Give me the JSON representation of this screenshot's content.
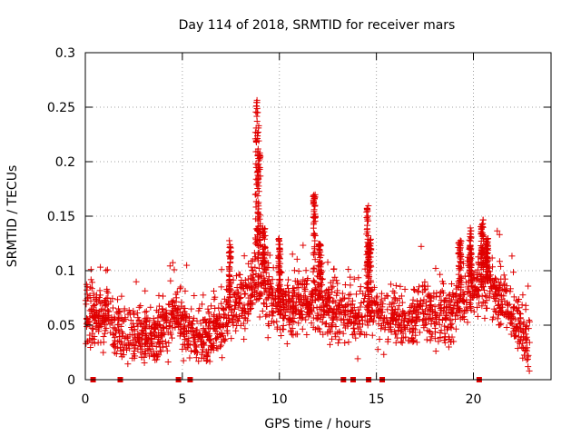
{
  "chart_data": {
    "type": "scatter",
    "title": "Day 114 of 2018, SRMTID for receiver mars",
    "xlabel": "GPS time / hours",
    "ylabel": "SRMTID / TECUs",
    "xlim": [
      0,
      24
    ],
    "ylim": [
      0,
      0.3
    ],
    "xticks": [
      0,
      5,
      10,
      15,
      20
    ],
    "yticks": [
      0,
      0.05,
      0.1,
      0.15,
      0.2,
      0.25,
      0.3
    ],
    "xtick_labels": [
      "0",
      "5",
      "10",
      "15",
      "20"
    ],
    "ytick_labels": [
      "0",
      "0.05",
      "0.1",
      "0.15",
      "0.2",
      "0.25",
      "0.3"
    ],
    "grid": true,
    "marker": "+",
    "color": "#e00000",
    "baseline_markers_x": [
      0.4,
      1.8,
      4.8,
      5.4,
      13.3,
      13.8,
      14.6,
      15.3,
      20.3
    ],
    "trend": [
      [
        0.0,
        0.06
      ],
      [
        0.5,
        0.055
      ],
      [
        1.2,
        0.06
      ],
      [
        1.7,
        0.045
      ],
      [
        2.5,
        0.038
      ],
      [
        3.5,
        0.042
      ],
      [
        4.2,
        0.05
      ],
      [
        4.8,
        0.06
      ],
      [
        5.2,
        0.045
      ],
      [
        6.0,
        0.04
      ],
      [
        6.8,
        0.048
      ],
      [
        7.5,
        0.06
      ],
      [
        8.2,
        0.075
      ],
      [
        8.7,
        0.09
      ],
      [
        9.2,
        0.085
      ],
      [
        9.8,
        0.07
      ],
      [
        10.5,
        0.065
      ],
      [
        11.5,
        0.072
      ],
      [
        12.2,
        0.07
      ],
      [
        13.0,
        0.06
      ],
      [
        14.0,
        0.058
      ],
      [
        14.7,
        0.07
      ],
      [
        15.3,
        0.06
      ],
      [
        16.5,
        0.05
      ],
      [
        17.2,
        0.065
      ],
      [
        18.0,
        0.06
      ],
      [
        18.8,
        0.055
      ],
      [
        19.5,
        0.075
      ],
      [
        20.2,
        0.09
      ],
      [
        20.8,
        0.085
      ],
      [
        21.5,
        0.07
      ],
      [
        22.0,
        0.06
      ],
      [
        22.5,
        0.045
      ],
      [
        22.8,
        0.035
      ]
    ],
    "spikes": [
      {
        "x": 8.85,
        "peak": 0.26,
        "width": 0.18
      },
      {
        "x": 8.95,
        "peak": 0.21,
        "width": 0.15
      },
      {
        "x": 9.2,
        "peak": 0.14,
        "width": 0.15
      },
      {
        "x": 11.8,
        "peak": 0.17,
        "width": 0.12
      },
      {
        "x": 12.1,
        "peak": 0.125,
        "width": 0.2
      },
      {
        "x": 14.55,
        "peak": 0.16,
        "width": 0.12
      },
      {
        "x": 14.65,
        "peak": 0.13,
        "width": 0.15
      },
      {
        "x": 10.0,
        "peak": 0.13,
        "width": 0.1
      },
      {
        "x": 7.45,
        "peak": 0.128,
        "width": 0.1
      },
      {
        "x": 19.3,
        "peak": 0.128,
        "width": 0.15
      },
      {
        "x": 19.85,
        "peak": 0.14,
        "width": 0.12
      },
      {
        "x": 20.45,
        "peak": 0.148,
        "width": 0.15
      },
      {
        "x": 20.7,
        "peak": 0.13,
        "width": 0.12
      }
    ],
    "point_count": 2200,
    "x_range_of_points": [
      0.0,
      22.9
    ]
  }
}
